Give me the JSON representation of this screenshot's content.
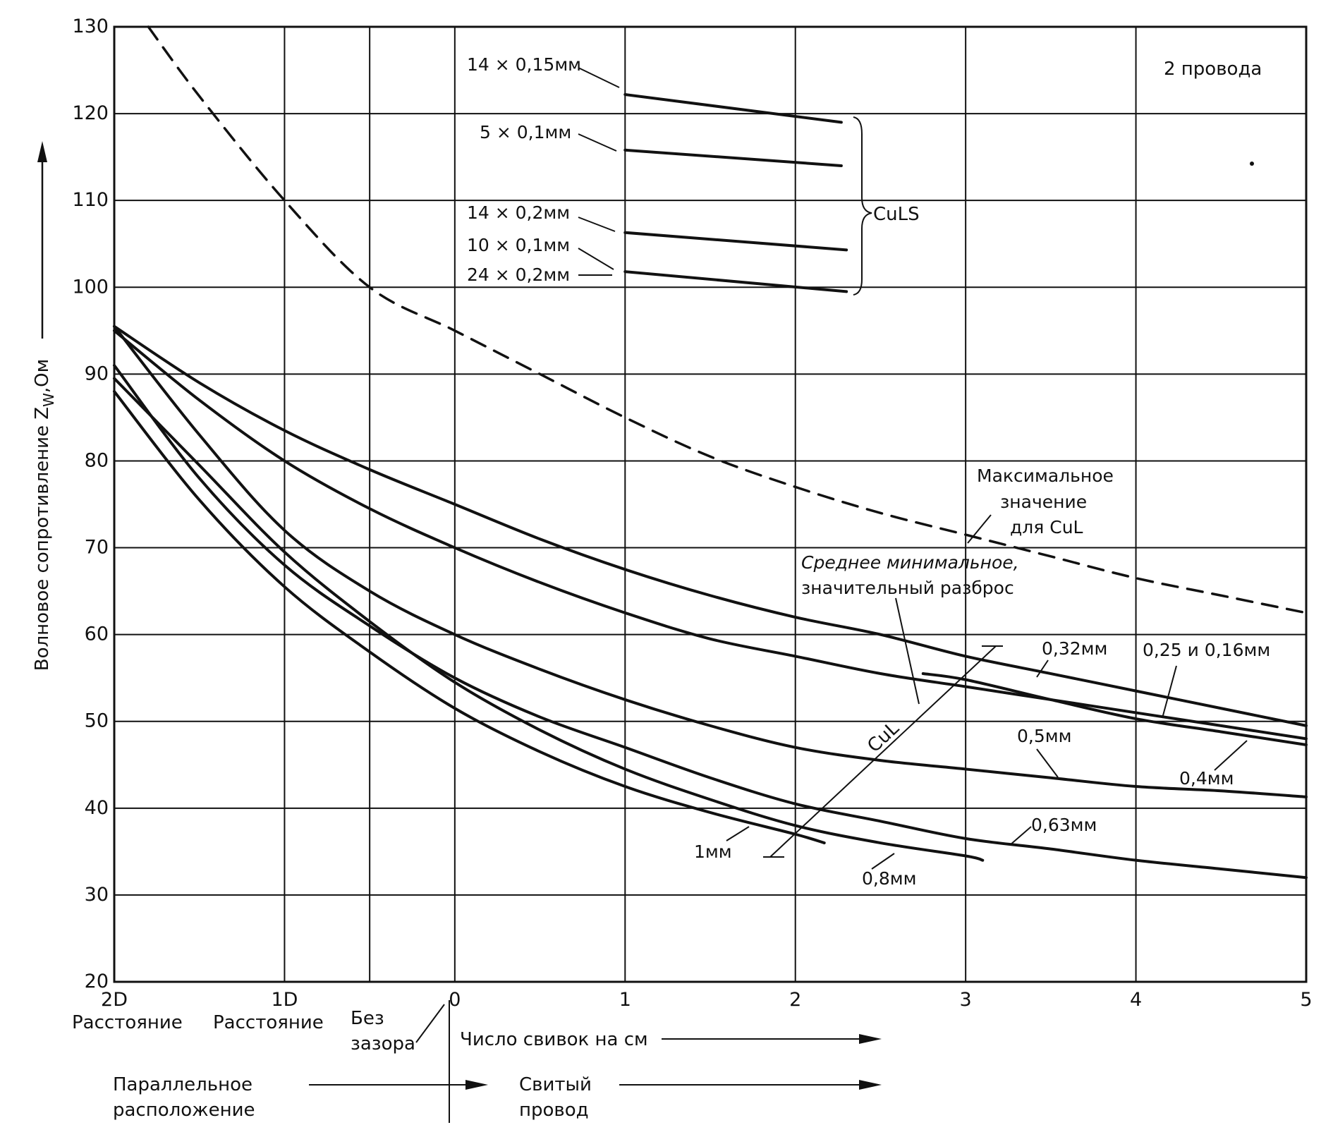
{
  "chart_data": {
    "type": "line",
    "ylabel": "Волновое сопротивление Z",
    "ylabel_sub": "W",
    "ylabel_unit": ",Ом",
    "ylim": [
      20,
      130
    ],
    "yticks": [
      20,
      30,
      40,
      50,
      60,
      70,
      80,
      90,
      100,
      110,
      120,
      130
    ],
    "xlim": [
      -2,
      5
    ],
    "xticks": [
      {
        "x": -2,
        "label": "2D"
      },
      {
        "x": -1,
        "label": "1D"
      },
      {
        "x": 0,
        "label": "0"
      },
      {
        "x": 1,
        "label": "1"
      },
      {
        "x": 2,
        "label": "2"
      },
      {
        "x": 3,
        "label": "3"
      },
      {
        "x": 4,
        "label": "4"
      },
      {
        "x": 5,
        "label": "5"
      }
    ],
    "grid": true,
    "corner_note": "2 провода",
    "bottom_labels": {
      "dist_2d": "Расстояние",
      "dist_1d": "Расстояние",
      "no_gap_1": "Без",
      "no_gap_2": "зазора",
      "twists_per_cm": "Число свивок на см",
      "parallel_1": "Параллельное",
      "parallel_2": "расположение",
      "twisted_1": "Свитый",
      "twisted_2": "провод"
    },
    "series": [
      {
        "name": "Максимальное значение для CuL",
        "style": "dashed",
        "x": [
          -1.8,
          -1.5,
          -1,
          -0.5,
          0,
          0.5,
          1,
          1.5,
          2,
          2.5,
          3,
          3.5,
          4,
          4.5,
          5
        ],
        "y": [
          130,
          122,
          110,
          100,
          95,
          90,
          85,
          80.5,
          77,
          74,
          71.5,
          69,
          66.5,
          64.5,
          62.5
        ]
      },
      {
        "name": "0,25 и 0,16мм",
        "x": [
          -2,
          -1.5,
          -1,
          -0.5,
          0,
          0.5,
          1,
          1.5,
          2,
          2.5,
          3,
          3.5,
          4,
          4.5,
          5
        ],
        "y": [
          95.5,
          89,
          83.5,
          79,
          75,
          71,
          67.5,
          64.5,
          62,
          60,
          57.5,
          55.5,
          53.5,
          51.5,
          49.5
        ]
      },
      {
        "name": "0,32мм",
        "x": [
          -2,
          -1.5,
          -1,
          -0.5,
          0,
          0.5,
          1,
          1.5,
          2,
          2.5,
          3,
          3.5,
          4,
          4.5,
          5
        ],
        "y": [
          95,
          87,
          80,
          74.5,
          70,
          66,
          62.5,
          59.5,
          57.5,
          55.5,
          54,
          52.5,
          51,
          49.5,
          48
        ]
      },
      {
        "name": "0,4мм",
        "x": [
          2.75,
          3,
          3.5,
          4,
          4.5,
          5
        ],
        "y": [
          55.5,
          54.8,
          52.5,
          50.3,
          48.8,
          47.3
        ]
      },
      {
        "name": "0,5мм",
        "x": [
          -2,
          -1.5,
          -1,
          -0.5,
          0,
          0.5,
          1,
          1.5,
          2,
          2.5,
          3,
          3.5,
          4,
          4.5,
          5
        ],
        "y": [
          95.5,
          83,
          72,
          65,
          60,
          56,
          52.5,
          49.5,
          47,
          45.5,
          44.5,
          43.5,
          42.5,
          42,
          41.3
        ]
      },
      {
        "name": "0,63мм",
        "x": [
          -2,
          -1.5,
          -1,
          -0.5,
          0,
          0.5,
          1,
          1.5,
          2,
          2.5,
          3,
          3.5,
          4,
          4.5,
          5
        ],
        "y": [
          91,
          78,
          68,
          61,
          55,
          50.5,
          47,
          43.5,
          40.5,
          38.5,
          36.5,
          35.3,
          34,
          33,
          32
        ]
      },
      {
        "name": "0,8мм",
        "x": [
          -2,
          -1.5,
          -1,
          -0.5,
          0,
          0.5,
          1,
          1.5,
          2,
          2.5,
          3,
          3.1
        ],
        "y": [
          89.5,
          79.5,
          69.5,
          61.5,
          54.5,
          49,
          44.5,
          41,
          38,
          36,
          34.5,
          34
        ]
      },
      {
        "name": "1мм",
        "x": [
          -2,
          -1.5,
          -1,
          -0.5,
          0,
          0.5,
          1,
          1.5,
          2,
          2.17
        ],
        "y": [
          88,
          75.5,
          65.5,
          58,
          51.5,
          46.5,
          42.5,
          39.5,
          37,
          36
        ]
      },
      {
        "name": "14 × 0,15мм",
        "x": [
          1,
          2.27
        ],
        "y": [
          122.2,
          119
        ]
      },
      {
        "name": "5 × 0,1мм",
        "x": [
          1,
          2.27
        ],
        "y": [
          115.8,
          114
        ]
      },
      {
        "name": "14 × 0,2мм",
        "x": [
          1,
          2.3
        ],
        "y": [
          106.3,
          104.3
        ]
      },
      {
        "name": "24 × 0,2мм",
        "x": [
          1,
          2.3
        ],
        "y": [
          101.8,
          99.5
        ]
      }
    ],
    "annotations": {
      "culs": "CuLS",
      "cul": "CuL",
      "max_1": "Максимальное",
      "max_2": "значение",
      "max_3": "для CuL",
      "avg_1": "Среднее минимальное,",
      "avg_2": "значительный разброс",
      "cuLS_10x01": "10 × 0,1мм"
    }
  }
}
